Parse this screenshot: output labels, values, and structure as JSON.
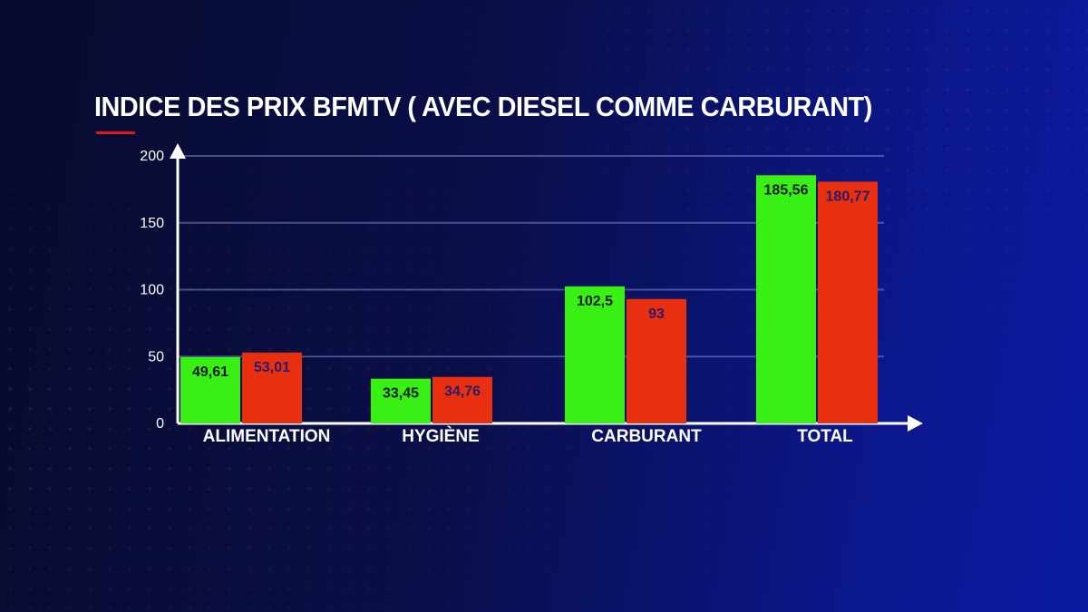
{
  "title": "INDICE DES PRIX BFMTV ( AVEC DIESEL COMME CARBURANT)",
  "colors": {
    "accent": "#e3161c",
    "series_green": "#38f014",
    "series_red": "#e83010",
    "label_green": "#0a1a10",
    "label_red": "#2a1a6a"
  },
  "chart_data": {
    "type": "bar",
    "title": "INDICE DES PRIX BFMTV ( AVEC DIESEL COMME CARBURANT)",
    "xlabel": "",
    "ylabel": "",
    "categories": [
      "ALIMENTATION",
      "HYGIÈNE",
      "CARBURANT",
      "TOTAL"
    ],
    "series": [
      {
        "values": [
          49.61,
          33.45,
          102.5,
          185.56
        ],
        "labels": [
          "49,61",
          "33,45",
          "102,5",
          "185,56"
        ],
        "color": "#38f014"
      },
      {
        "values": [
          53.01,
          34.76,
          93,
          180.77
        ],
        "labels": [
          "53,01",
          "34,76",
          "93",
          "180,77"
        ],
        "color": "#e83010"
      }
    ],
    "ylim": [
      0,
      200
    ],
    "yticks": [
      0,
      50,
      100,
      150,
      200
    ],
    "grid": true,
    "legend": "none"
  }
}
